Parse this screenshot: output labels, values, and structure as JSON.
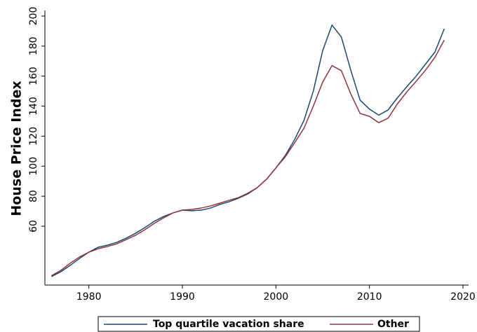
{
  "chart_data": {
    "type": "line",
    "y_label": "House Price Index",
    "x": [
      1976,
      1977,
      1978,
      1979,
      1980,
      1981,
      1982,
      1983,
      1984,
      1985,
      1986,
      1987,
      1988,
      1989,
      1990,
      1991,
      1992,
      1993,
      1994,
      1995,
      1996,
      1997,
      1998,
      1999,
      2000,
      2001,
      2002,
      2003,
      2004,
      2005,
      2006,
      2007,
      2008,
      2009,
      2010,
      2011,
      2012,
      2013,
      2014,
      2015,
      2016,
      2017,
      2018
    ],
    "series": [
      {
        "name": "Top quartile vacation share",
        "color": "#1a476f",
        "values": [
          26.4,
          29.7,
          33.9,
          38.5,
          42.7,
          46.0,
          47.4,
          49.3,
          52.1,
          55.3,
          59.1,
          63.3,
          66.5,
          68.9,
          70.7,
          70.3,
          70.7,
          72.1,
          74.5,
          76.3,
          78.7,
          81.5,
          85.7,
          91.3,
          98.8,
          107.1,
          117.7,
          130.5,
          150.0,
          177.0,
          194.0,
          186.0,
          164.0,
          144.0,
          138.0,
          134.0,
          137.5,
          145.6,
          153.0,
          160.0,
          168.0,
          176.0,
          191.5
        ]
      },
      {
        "name": "Other",
        "color": "#90353b",
        "values": [
          27.0,
          30.6,
          35.3,
          39.5,
          42.7,
          45.0,
          46.5,
          48.3,
          51.1,
          54.0,
          57.7,
          61.9,
          65.6,
          68.9,
          70.7,
          71.2,
          72.1,
          73.5,
          75.4,
          77.3,
          79.1,
          82.0,
          85.7,
          91.3,
          98.8,
          106.2,
          115.6,
          125.3,
          140.0,
          156.0,
          167.0,
          163.6,
          148.2,
          135.1,
          133.2,
          129.0,
          132.0,
          141.6,
          149.5,
          156.6,
          164.0,
          172.5,
          184.0
        ]
      }
    ],
    "xlim": [
      1975.3,
      2020.6
    ],
    "xticks": [
      1980,
      1990,
      2000,
      2010,
      2020
    ],
    "ylim": [
      20.8,
      203.7
    ],
    "yticks": [
      60,
      80,
      100,
      120,
      140,
      160,
      180,
      200
    ],
    "grid": false,
    "legend_position": "bottom"
  }
}
